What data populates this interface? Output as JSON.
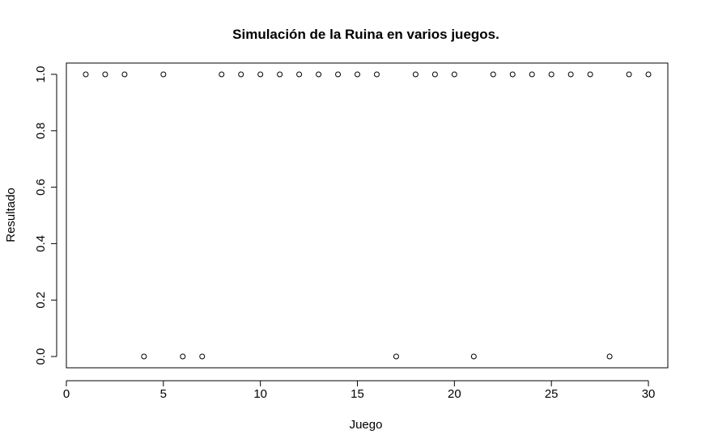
{
  "chart_data": {
    "type": "scatter",
    "title": "Simulación de la Ruina en varios juegos.",
    "xlabel": "Juego",
    "ylabel": "Resultado",
    "xlim": [
      0,
      31
    ],
    "ylim": [
      -0.04,
      1.04
    ],
    "x_ticks": [
      0,
      5,
      10,
      15,
      20,
      25,
      30
    ],
    "x_tick_labels": [
      "0",
      "5",
      "10",
      "15",
      "20",
      "25",
      "30"
    ],
    "y_ticks": [
      0,
      0.2,
      0.4,
      0.6,
      0.8,
      1.0
    ],
    "y_tick_labels": [
      "0.0",
      "0.2",
      "0.4",
      "0.6",
      "0.8",
      "1.0"
    ],
    "grid": false,
    "legend": "none",
    "marker": "open-circle",
    "series": [
      {
        "x": [
          1,
          2,
          3,
          4,
          5,
          6,
          7,
          8,
          9,
          10,
          11,
          12,
          13,
          14,
          15,
          16,
          17,
          18,
          19,
          20,
          21,
          22,
          23,
          24,
          25,
          26,
          27,
          28,
          29,
          30
        ],
        "y": [
          1,
          1,
          1,
          0,
          1,
          0,
          0,
          1,
          1,
          1,
          1,
          1,
          1,
          1,
          1,
          1,
          0,
          1,
          1,
          1,
          0,
          1,
          1,
          1,
          1,
          1,
          1,
          0,
          1,
          1
        ]
      }
    ],
    "colors": {
      "points": "#000000",
      "axes": "#000000",
      "background": "#ffffff"
    }
  }
}
